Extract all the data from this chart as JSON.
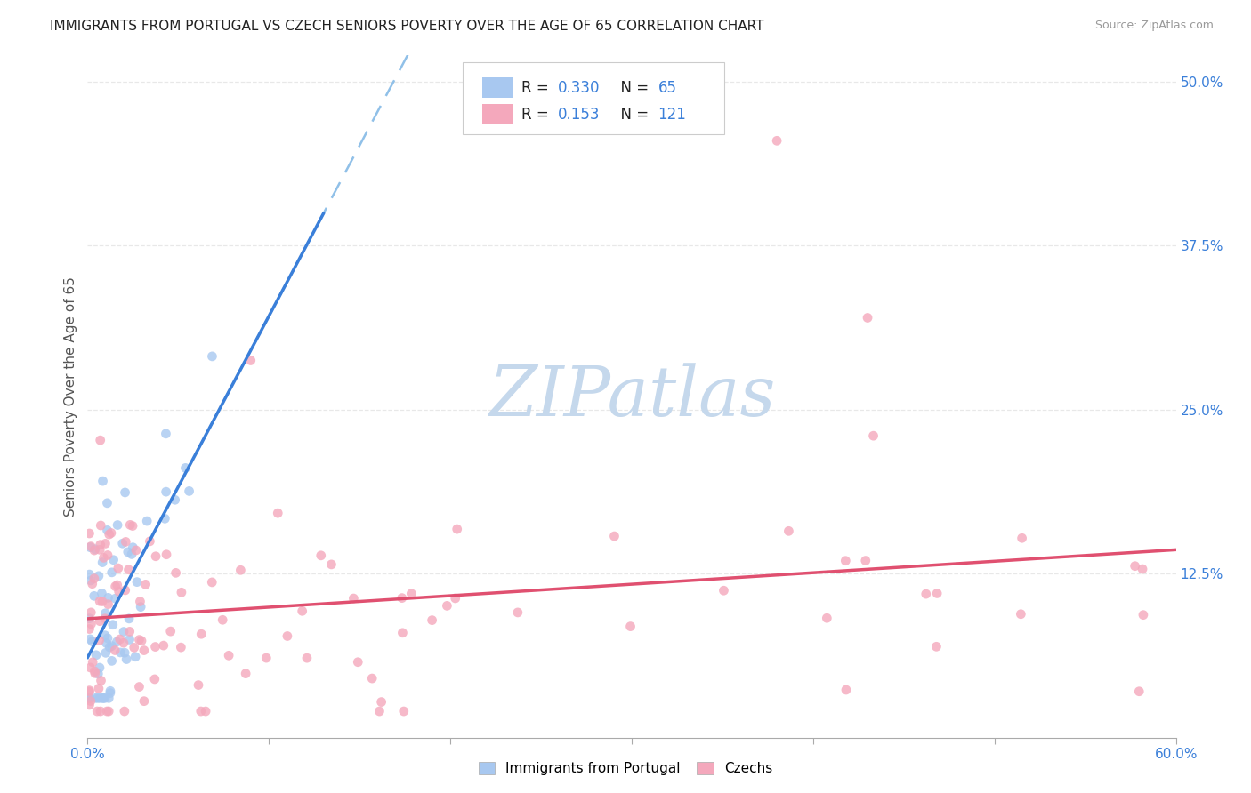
{
  "title": "IMMIGRANTS FROM PORTUGAL VS CZECH SENIORS POVERTY OVER THE AGE OF 65 CORRELATION CHART",
  "source": "Source: ZipAtlas.com",
  "ylabel": "Seniors Poverty Over the Age of 65",
  "legend_R1": "R = 0.330",
  "legend_N1": "N = 65",
  "legend_R2": "R = 0.153",
  "legend_N2": "N = 121",
  "blue_color": "#A8C8F0",
  "pink_color": "#F4A8BC",
  "trendline_blue_color": "#3A7FD9",
  "trendline_pink_color": "#E05070",
  "trendline_blue_dashed_color": "#90C0E8",
  "watermark_color": "#C5D8EC",
  "background_color": "#FFFFFF",
  "grid_color": "#E8E8E8",
  "xlim": [
    0.0,
    0.6
  ],
  "ylim": [
    0.0,
    0.52
  ],
  "ytick_vals": [
    0.125,
    0.25,
    0.375,
    0.5
  ],
  "ytick_labels": [
    "12.5%",
    "25.0%",
    "37.5%",
    "50.0%"
  ],
  "title_color": "#222222",
  "source_color": "#999999",
  "yticklabel_color": "#3A7FD9",
  "xticklabel_color": "#3A7FD9"
}
